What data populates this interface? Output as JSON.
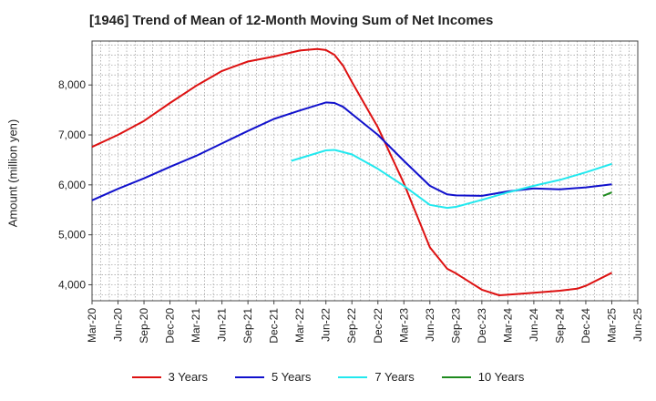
{
  "chart_data": {
    "type": "line",
    "title": "[1946]  Trend of Mean of 12-Month Moving Sum of Net Incomes",
    "ylabel": "Amount (million yen)",
    "xlabel": "",
    "ylim": [
      3680,
      8880
    ],
    "yticks": [
      4000,
      5000,
      6000,
      7000,
      8000
    ],
    "ytick_labels": [
      "4,000",
      "5,000",
      "6,000",
      "7,000",
      "8,000"
    ],
    "x_range": [
      "2020-03",
      "2025-06"
    ],
    "xtick_labels": [
      "Mar-20",
      "Jun-20",
      "Sep-20",
      "Dec-20",
      "Mar-21",
      "Jun-21",
      "Sep-21",
      "Dec-21",
      "Mar-22",
      "Jun-22",
      "Sep-22",
      "Dec-22",
      "Mar-23",
      "Jun-23",
      "Sep-23",
      "Dec-23",
      "Mar-24",
      "Jun-24",
      "Sep-24",
      "Dec-24",
      "Mar-25",
      "Jun-25"
    ],
    "grid": true,
    "legend_position": "bottom",
    "series": [
      {
        "name": "3 Years",
        "color": "#dd1111",
        "points": [
          [
            "2020-03",
            6760
          ],
          [
            "2020-06",
            7000
          ],
          [
            "2020-09",
            7280
          ],
          [
            "2020-12",
            7640
          ],
          [
            "2021-03",
            7980
          ],
          [
            "2021-06",
            8280
          ],
          [
            "2021-09",
            8470
          ],
          [
            "2021-12",
            8570
          ],
          [
            "2022-03",
            8690
          ],
          [
            "2022-05",
            8720
          ],
          [
            "2022-06",
            8700
          ],
          [
            "2022-07",
            8600
          ],
          [
            "2022-08",
            8380
          ],
          [
            "2022-09",
            8060
          ],
          [
            "2022-12",
            7150
          ],
          [
            "2023-03",
            6030
          ],
          [
            "2023-06",
            4750
          ],
          [
            "2023-08",
            4320
          ],
          [
            "2023-09",
            4230
          ],
          [
            "2023-12",
            3900
          ],
          [
            "2024-02",
            3790
          ],
          [
            "2024-03",
            3800
          ],
          [
            "2024-06",
            3840
          ],
          [
            "2024-09",
            3880
          ],
          [
            "2024-11",
            3920
          ],
          [
            "2024-12",
            3980
          ],
          [
            "2025-03",
            4240
          ]
        ]
      },
      {
        "name": "5 Years",
        "color": "#1111cc",
        "points": [
          [
            "2020-03",
            5690
          ],
          [
            "2020-06",
            5920
          ],
          [
            "2020-09",
            6130
          ],
          [
            "2020-12",
            6360
          ],
          [
            "2021-03",
            6580
          ],
          [
            "2021-06",
            6830
          ],
          [
            "2021-09",
            7080
          ],
          [
            "2021-12",
            7320
          ],
          [
            "2022-03",
            7490
          ],
          [
            "2022-06",
            7650
          ],
          [
            "2022-07",
            7640
          ],
          [
            "2022-08",
            7560
          ],
          [
            "2022-09",
            7420
          ],
          [
            "2022-12",
            7000
          ],
          [
            "2023-03",
            6480
          ],
          [
            "2023-06",
            5980
          ],
          [
            "2023-08",
            5810
          ],
          [
            "2023-09",
            5790
          ],
          [
            "2023-12",
            5780
          ],
          [
            "2024-03",
            5870
          ],
          [
            "2024-06",
            5930
          ],
          [
            "2024-09",
            5910
          ],
          [
            "2024-12",
            5950
          ],
          [
            "2025-03",
            6010
          ]
        ]
      },
      {
        "name": "7 Years",
        "color": "#22e8ee",
        "points": [
          [
            "2022-02",
            6480
          ],
          [
            "2022-06",
            6690
          ],
          [
            "2022-07",
            6700
          ],
          [
            "2022-09",
            6610
          ],
          [
            "2022-12",
            6320
          ],
          [
            "2023-03",
            5980
          ],
          [
            "2023-06",
            5600
          ],
          [
            "2023-08",
            5540
          ],
          [
            "2023-09",
            5560
          ],
          [
            "2023-12",
            5700
          ],
          [
            "2024-03",
            5850
          ],
          [
            "2024-06",
            5980
          ],
          [
            "2024-09",
            6100
          ],
          [
            "2024-12",
            6250
          ],
          [
            "2025-03",
            6420
          ]
        ]
      },
      {
        "name": "10 Years",
        "color": "#1e8a1e",
        "points": [
          [
            "2025-02",
            5780
          ],
          [
            "2025-03",
            5850
          ]
        ]
      }
    ]
  }
}
